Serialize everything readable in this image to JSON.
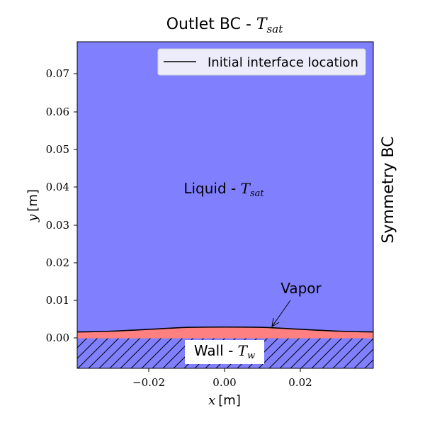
{
  "figure": {
    "title": {
      "text": "Outlet BC - ",
      "math": "T",
      "sub": "sat"
    },
    "right_label": "Symmetry BC",
    "region_liquid": {
      "text": "Liquid - ",
      "math": "T",
      "sub": "sat"
    },
    "region_vapor": "Vapor",
    "region_wall": {
      "text": "Wall - ",
      "math": "T",
      "sub": "w"
    },
    "legend": {
      "entries": [
        "Initial interface location"
      ]
    },
    "colors": {
      "liquid": "#8080ff",
      "vapor": "#ff8080",
      "interface": "#000000",
      "hatch": "#000000"
    }
  },
  "chart_data": {
    "type": "line",
    "title": "Outlet BC - T_sat",
    "xlabel": {
      "var": "x",
      "unit": "[m]"
    },
    "ylabel": {
      "var": "y",
      "unit": "[m]"
    },
    "xlim": [
      -0.039,
      0.039
    ],
    "ylim": [
      -0.008,
      0.079
    ],
    "xticks": [
      -0.02,
      0.0,
      0.02
    ],
    "xtick_labels": [
      "−0.02",
      "0.00",
      "0.02"
    ],
    "yticks": [
      0.0,
      0.01,
      0.02,
      0.03,
      0.04,
      0.05,
      0.06,
      0.07
    ],
    "ytick_labels": [
      "0.00",
      "0.01",
      "0.02",
      "0.03",
      "0.04",
      "0.05",
      "0.06",
      "0.07"
    ],
    "series": [
      {
        "name": "Initial interface location",
        "x": [
          -0.039,
          -0.03,
          -0.02,
          -0.01,
          0.0,
          0.01,
          0.02,
          0.03,
          0.039
        ],
        "y": [
          0.0017,
          0.0019,
          0.0024,
          0.0029,
          0.003,
          0.0029,
          0.0024,
          0.0019,
          0.0017
        ]
      }
    ],
    "wall_top_y": 0.0,
    "annotation": {
      "text": "Vapor",
      "point": [
        0.0125,
        0.0025
      ],
      "text_pos": [
        0.02,
        0.0125
      ]
    }
  }
}
